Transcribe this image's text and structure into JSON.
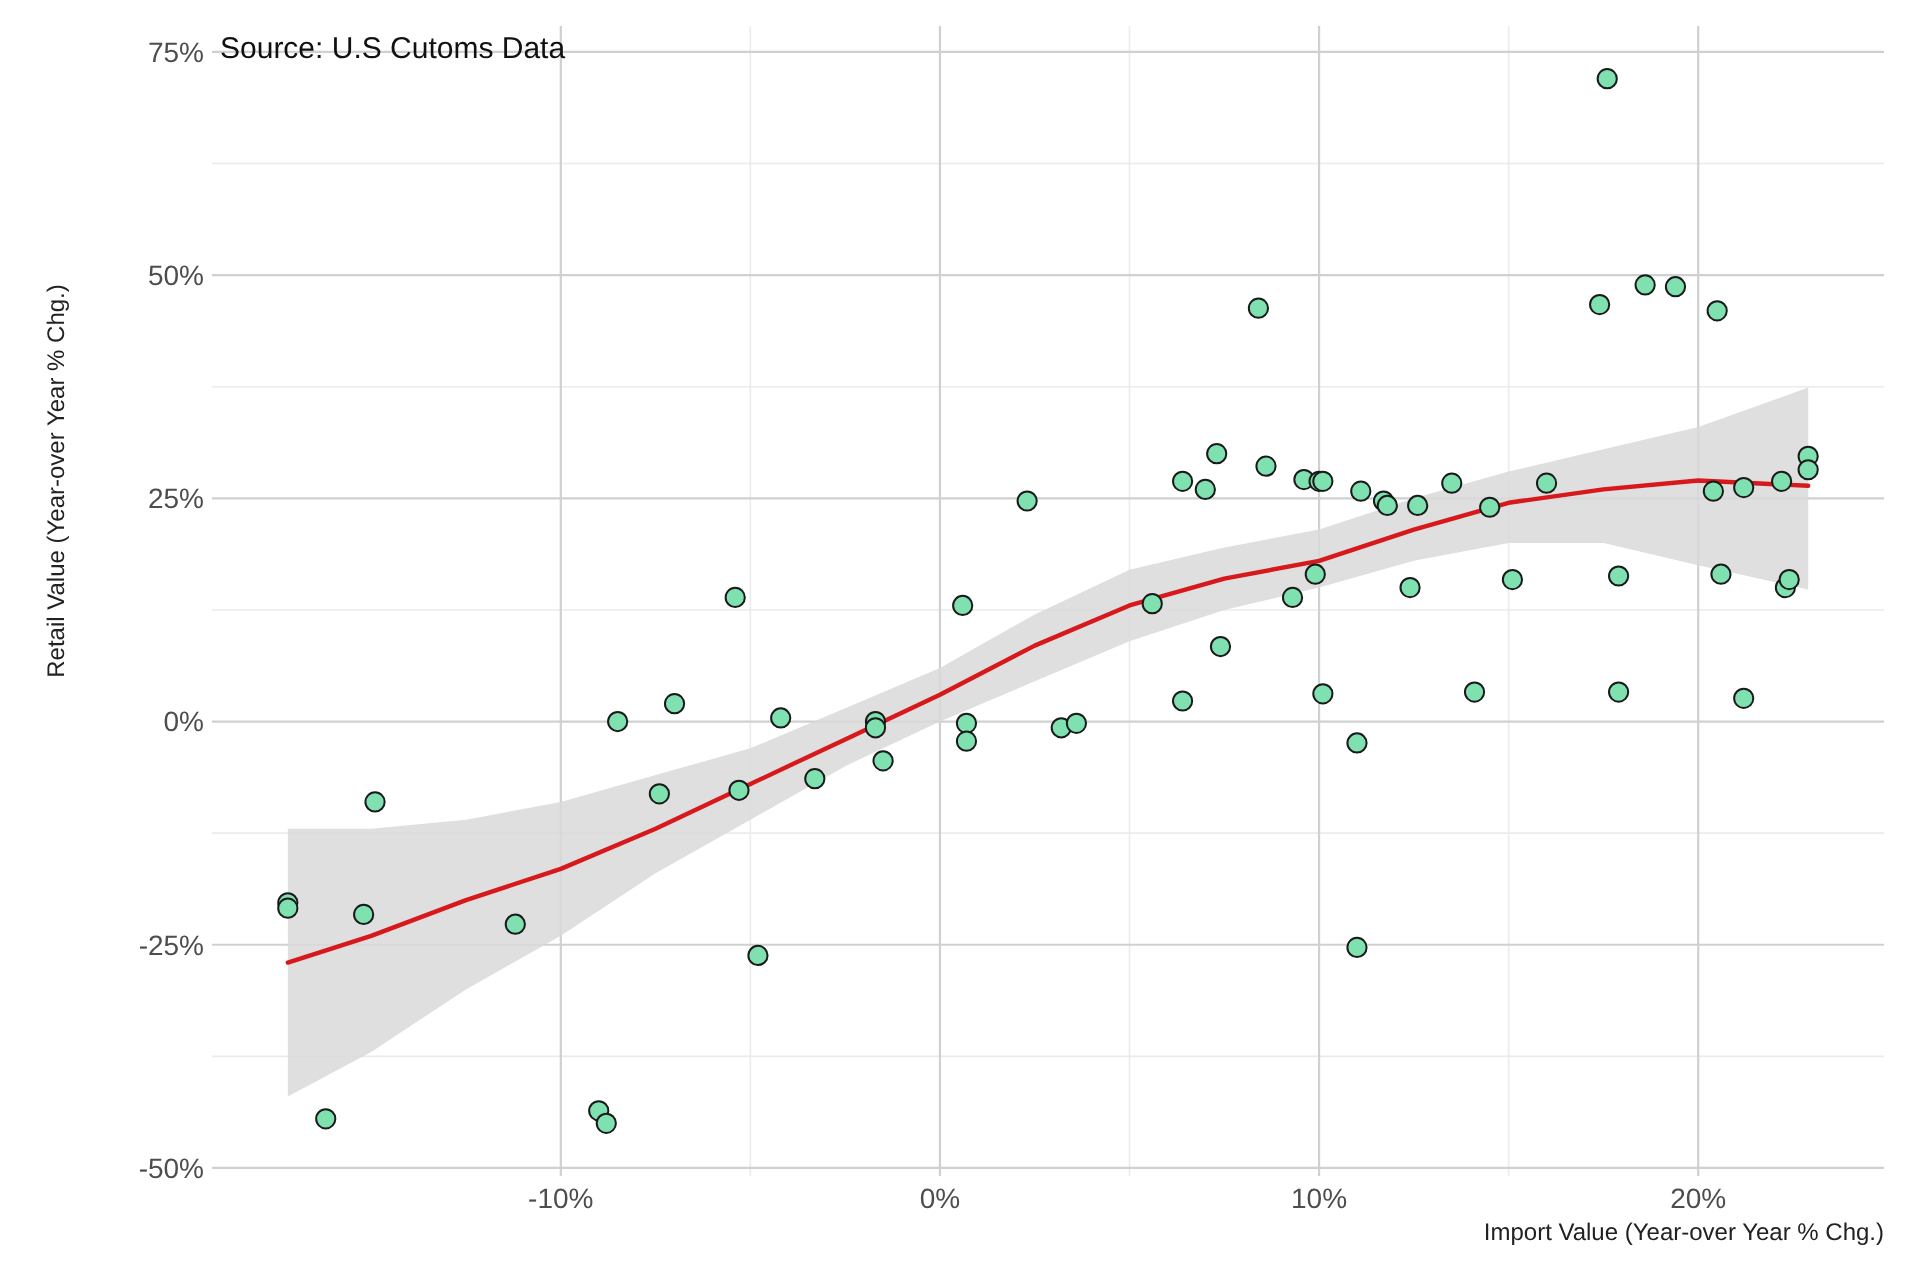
{
  "chart_data": {
    "type": "scatter",
    "xlabel": "Import Value (Year-over Year % Chg.)",
    "ylabel": "Retail Value (Year-over Year % Chg.)",
    "annotations": [
      "Source: U.S Cutoms Data"
    ],
    "xlim": [
      -19.2,
      24.9
    ],
    "ylim": [
      -50.9,
      77.9
    ],
    "xticks": [
      {
        "value": -10,
        "label": "-10%"
      },
      {
        "value": 0,
        "label": "0%"
      },
      {
        "value": 10,
        "label": "10%"
      },
      {
        "value": 20,
        "label": "20%"
      }
    ],
    "yticks": [
      {
        "value": -50,
        "label": "-50%"
      },
      {
        "value": -25,
        "label": "-25%"
      },
      {
        "value": 0,
        "label": "0%"
      },
      {
        "value": 25,
        "label": "25%"
      },
      {
        "value": 50,
        "label": "50%"
      },
      {
        "value": 75,
        "label": "75%"
      }
    ],
    "grid": true,
    "marker": "circle",
    "series": [
      {
        "type": "line",
        "color": "#d7191c",
        "line_style": "solid",
        "marker": "none",
        "x": [
          -17.2,
          -15,
          -12.5,
          -10,
          -7.5,
          -5,
          -2.5,
          0,
          2.5,
          5,
          7.5,
          10,
          12.5,
          15,
          17.5,
          20,
          22.9
        ],
        "values": [
          -27,
          -24,
          -20,
          -16.5,
          -12,
          -7,
          -2,
          3,
          8.5,
          13,
          16,
          18,
          21.5,
          24.5,
          26,
          27,
          26.4
        ],
        "lower": [
          -42,
          -37,
          -30,
          -24,
          -17,
          -11,
          -5,
          0,
          4.5,
          9,
          12.5,
          15,
          18,
          20,
          20,
          17.5,
          14.8
        ],
        "upper": [
          -12,
          -12,
          -11,
          -9,
          -6,
          -3,
          1.5,
          6,
          12,
          17,
          19.5,
          21.5,
          25,
          28,
          30.5,
          33,
          37.4
        ]
      },
      {
        "color": "#7fe0b0",
        "x": [
          -17.2,
          -17.2,
          -14.9,
          -15.2,
          -16.2,
          -11.2,
          -9.0,
          -8.8,
          -8.5,
          -7.0,
          -7.4,
          -5.4,
          -5.3,
          -4.8,
          -4.2,
          -3.3,
          -1.7,
          -1.7,
          -1.5,
          0.6,
          0.7,
          0.7,
          2.3,
          3.2,
          3.6,
          5.6,
          6.4,
          6.4,
          7.0,
          7.3,
          7.4,
          8.4,
          8.6,
          9.3,
          9.6,
          9.9,
          10.0,
          10.1,
          10.1,
          11.0,
          11.0,
          11.1,
          11.7,
          11.8,
          12.4,
          12.6,
          13.5,
          14.1,
          14.5,
          15.1,
          16.0,
          17.4,
          17.6,
          17.9,
          17.9,
          18.6,
          19.4,
          20.4,
          20.5,
          20.6,
          21.2,
          21.2,
          22.2,
          22.3,
          22.4,
          22.9,
          22.9
        ],
        "values": [
          -20.3,
          -20.9,
          -9,
          -21.6,
          -44.5,
          -22.7,
          -43.6,
          -45,
          0,
          2,
          -8.1,
          13.9,
          -7.7,
          -26.2,
          0.4,
          -6.4,
          0,
          -0.7,
          -4.4,
          13,
          -0.2,
          -2.2,
          24.7,
          -0.7,
          -0.2,
          13.2,
          26.9,
          2.3,
          26,
          30,
          8.4,
          46.3,
          28.6,
          13.9,
          27.1,
          16.5,
          26.9,
          26.9,
          3.1,
          -2.4,
          -25.3,
          25.8,
          24.7,
          24.2,
          15,
          24.2,
          26.7,
          3.3,
          24,
          15.9,
          26.7,
          46.7,
          72,
          16.3,
          3.3,
          48.9,
          48.7,
          25.8,
          46,
          16.5,
          26.2,
          2.6,
          26.9,
          15,
          15.9,
          29.7,
          28.2
        ]
      }
    ]
  }
}
